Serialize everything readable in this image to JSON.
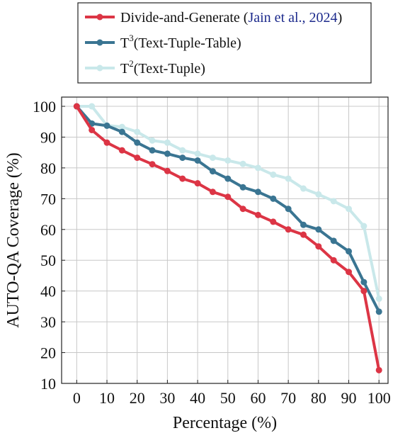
{
  "chart_data": {
    "type": "line",
    "xlabel": "Percentage (%)",
    "ylabel": "AUTO-QA Coverage (%)",
    "xlim": [
      -5,
      103
    ],
    "ylim": [
      10,
      103
    ],
    "xticks": [
      0,
      10,
      20,
      30,
      40,
      50,
      60,
      70,
      80,
      90,
      100
    ],
    "yticks": [
      10,
      20,
      30,
      40,
      50,
      60,
      70,
      80,
      90,
      100
    ],
    "grid": true,
    "legend_position": "top-center (above plot)",
    "x": [
      0,
      5,
      10,
      15,
      20,
      25,
      30,
      35,
      40,
      45,
      50,
      55,
      60,
      65,
      70,
      75,
      80,
      85,
      90,
      95,
      100
    ],
    "series": [
      {
        "name_text": "Divide-and-Generate (",
        "name_cite": "Jain et al., 2024",
        "name_close": ")",
        "color": "#dc3545",
        "values": [
          100,
          92.3,
          88.2,
          85.7,
          83.3,
          81.2,
          79,
          76.5,
          75,
          72.2,
          70.6,
          66.7,
          64.7,
          62.5,
          60,
          58.3,
          54.5,
          50,
          46.2,
          40,
          14.3
        ]
      },
      {
        "name_base": "T",
        "name_sup": "3",
        "name_rest": "(Text-Tuple-Table)",
        "color": "#3a7592",
        "values": [
          100,
          94.4,
          93.7,
          91.7,
          88.2,
          85.7,
          84.6,
          83.3,
          82.4,
          78.9,
          76.5,
          73.7,
          72.2,
          70,
          66.7,
          61.5,
          60,
          56.3,
          52.9,
          42.9,
          33.3
        ]
      },
      {
        "name_base": "T",
        "name_sup": "2",
        "name_rest": "(Text-Tuple)",
        "color": "#c9e8ea",
        "values": [
          100,
          100,
          93.8,
          93.3,
          91.7,
          88.9,
          88.2,
          85.7,
          84.6,
          83.3,
          82.4,
          81.3,
          80,
          77.8,
          76.5,
          73.3,
          71.4,
          69.2,
          66.7,
          61.1,
          37.5
        ]
      }
    ]
  }
}
